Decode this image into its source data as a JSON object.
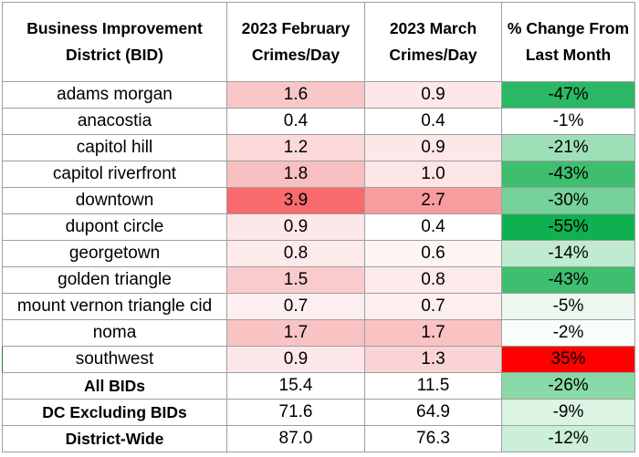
{
  "headers": [
    "Business Improvement District (BID)",
    "2023 February Crimes/Day",
    "2023 March Crimes/Day",
    "% Change From Last Month"
  ],
  "rows": [
    {
      "name": "adams morgan",
      "feb": "1.6",
      "mar": "0.9",
      "change": "-47%",
      "feb_color": "#f9c6c7",
      "mar_color": "#fde7e8",
      "change_color": "#2bb865"
    },
    {
      "name": "anacostia",
      "feb": "0.4",
      "mar": "0.4",
      "change": "-1%",
      "feb_color": "#ffffff",
      "mar_color": "#ffffff",
      "change_color": "#ffffff"
    },
    {
      "name": "capitol hill",
      "feb": "1.2",
      "mar": "0.9",
      "change": "-21%",
      "feb_color": "#fbd9da",
      "mar_color": "#fde7e8",
      "change_color": "#9fdfb7"
    },
    {
      "name": "capitol riverfront",
      "feb": "1.8",
      "mar": "1.0",
      "change": "-43%",
      "feb_color": "#f8bfc0",
      "mar_color": "#fde4e5",
      "change_color": "#3ebf70"
    },
    {
      "name": "downtown",
      "feb": "3.9",
      "mar": "2.7",
      "change": "-30%",
      "feb_color": "#f86a6c",
      "mar_color": "#f99c9e",
      "change_color": "#74d29a"
    },
    {
      "name": "dupont circle",
      "feb": "0.9",
      "mar": "0.4",
      "change": "-55%",
      "feb_color": "#fde7e8",
      "mar_color": "#ffffff",
      "change_color": "#0fb04f"
    },
    {
      "name": "georgetown",
      "feb": "0.8",
      "mar": "0.6",
      "change": "-14%",
      "feb_color": "#fdeaeb",
      "mar_color": "#fef4f4",
      "change_color": "#c0ebd0"
    },
    {
      "name": "golden triangle",
      "feb": "1.5",
      "mar": "0.8",
      "change": "-43%",
      "feb_color": "#facbcc",
      "mar_color": "#fdeaeb",
      "change_color": "#3ebf70"
    },
    {
      "name": "mount vernon triangle cid",
      "feb": "0.7",
      "mar": "0.7",
      "change": "-5%",
      "feb_color": "#fdefef",
      "mar_color": "#fdefef",
      "change_color": "#ecf8f0"
    },
    {
      "name": "noma",
      "feb": "1.7",
      "mar": "1.7",
      "change": "-2%",
      "feb_color": "#f9c3c4",
      "mar_color": "#f9c3c4",
      "change_color": "#f8fdfa"
    },
    {
      "name": "southwest",
      "feb": "0.9",
      "mar": "1.3",
      "change": "35%",
      "feb_color": "#fde7e8",
      "mar_color": "#fad3d4",
      "change_color": "#ff0000"
    }
  ],
  "summary": [
    {
      "name": "All BIDs",
      "feb": "15.4",
      "mar": "11.5",
      "change": "-26%",
      "change_color": "#8ad9a8"
    },
    {
      "name": "DC Excluding BIDs",
      "feb": "71.6",
      "mar": "64.9",
      "change": "-9%",
      "change_color": "#dbf4e4"
    },
    {
      "name": "District-Wide",
      "feb": "87.0",
      "mar": "76.3",
      "change": "-12%",
      "change_color": "#cbefd9"
    }
  ]
}
